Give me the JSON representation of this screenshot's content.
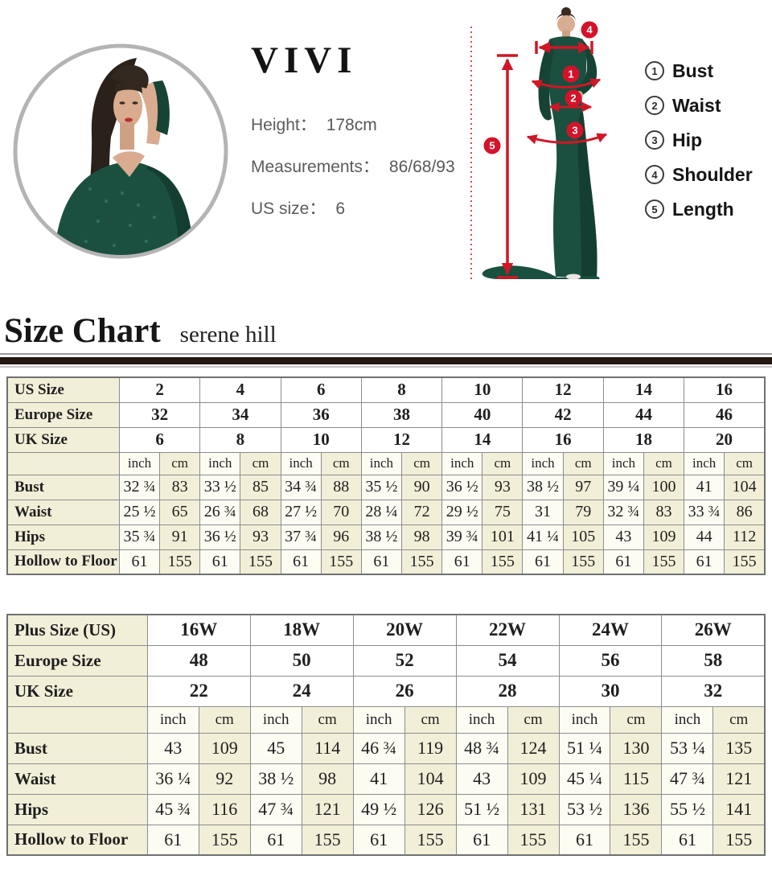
{
  "model_info": {
    "brand": "VIVI",
    "rows": [
      {
        "label": "Height：",
        "value": "178cm"
      },
      {
        "label": "Measurements：",
        "value": "86/68/93"
      },
      {
        "label": "US size：",
        "value": "6"
      }
    ]
  },
  "diagram": {
    "badges": [
      "1",
      "2",
      "3",
      "4",
      "5"
    ]
  },
  "legend": {
    "items": [
      {
        "num": "1",
        "label": "Bust"
      },
      {
        "num": "2",
        "label": "Waist"
      },
      {
        "num": "3",
        "label": "Hip"
      },
      {
        "num": "4",
        "label": "Shoulder"
      },
      {
        "num": "5",
        "label": "Length"
      }
    ]
  },
  "heading": {
    "title": "Size Chart",
    "subtitle": "serene hill"
  },
  "units": {
    "inch": "inch",
    "cm": "cm"
  },
  "size_chart": {
    "groups": 8,
    "label_col_width": "14.8%",
    "header_rows": [
      {
        "label": "US Size",
        "values": [
          "2",
          "4",
          "6",
          "8",
          "10",
          "12",
          "14",
          "16"
        ]
      },
      {
        "label": "Europe Size",
        "values": [
          "32",
          "34",
          "36",
          "38",
          "40",
          "42",
          "44",
          "46"
        ]
      },
      {
        "label": "UK Size",
        "values": [
          "6",
          "8",
          "10",
          "12",
          "14",
          "16",
          "18",
          "20"
        ]
      }
    ],
    "body_rows": [
      {
        "label": "Bust",
        "cells": [
          "32 ¾",
          "83",
          "33 ½",
          "85",
          "34 ¾",
          "88",
          "35 ½",
          "90",
          "36 ½",
          "93",
          "38 ½",
          "97",
          "39 ¼",
          "100",
          "41",
          "104"
        ]
      },
      {
        "label": "Waist",
        "cells": [
          "25 ½",
          "65",
          "26 ¾",
          "68",
          "27 ½",
          "70",
          "28 ¼",
          "72",
          "29 ½",
          "75",
          "31",
          "79",
          "32 ¾",
          "83",
          "33 ¾",
          "86"
        ]
      },
      {
        "label": "Hips",
        "cells": [
          "35 ¾",
          "91",
          "36 ½",
          "93",
          "37 ¾",
          "96",
          "38 ½",
          "98",
          "39 ¾",
          "101",
          "41 ¼",
          "105",
          "43",
          "109",
          "44",
          "112"
        ]
      },
      {
        "label": "Hollow to Floor",
        "cells": [
          "61",
          "155",
          "61",
          "155",
          "61",
          "155",
          "61",
          "155",
          "61",
          "155",
          "61",
          "155",
          "61",
          "155",
          "61",
          "155"
        ]
      }
    ]
  },
  "plus_chart": {
    "groups": 6,
    "label_col_width": "18.5%",
    "header_rows": [
      {
        "label": "Plus Size (US)",
        "values": [
          "16W",
          "18W",
          "20W",
          "22W",
          "24W",
          "26W"
        ]
      },
      {
        "label": "Europe Size",
        "values": [
          "48",
          "50",
          "52",
          "54",
          "56",
          "58"
        ]
      },
      {
        "label": "UK Size",
        "values": [
          "22",
          "24",
          "26",
          "28",
          "30",
          "32"
        ]
      }
    ],
    "body_rows": [
      {
        "label": "Bust",
        "cells": [
          "43",
          "109",
          "45",
          "114",
          "46 ¾",
          "119",
          "48 ¾",
          "124",
          "51 ¼",
          "130",
          "53 ¼",
          "135"
        ]
      },
      {
        "label": "Waist",
        "cells": [
          "36 ¼",
          "92",
          "38 ½",
          "98",
          "41",
          "104",
          "43",
          "109",
          "45 ¼",
          "115",
          "47 ¾",
          "121"
        ]
      },
      {
        "label": "Hips",
        "cells": [
          "45 ¾",
          "116",
          "47 ¾",
          "121",
          "49 ½",
          "126",
          "51 ½",
          "131",
          "53 ½",
          "136",
          "55 ½",
          "141"
        ]
      },
      {
        "label": "Hollow to Floor",
        "cells": [
          "61",
          "155",
          "61",
          "155",
          "61",
          "155",
          "61",
          "155",
          "61",
          "155",
          "61",
          "155"
        ]
      }
    ]
  },
  "colors": {
    "accent_red": "#cf1726",
    "badge_red": "#d4132a",
    "dress_green": "#1b5040",
    "table_cream": "#f2efd8",
    "divider_dark": "#241712"
  }
}
